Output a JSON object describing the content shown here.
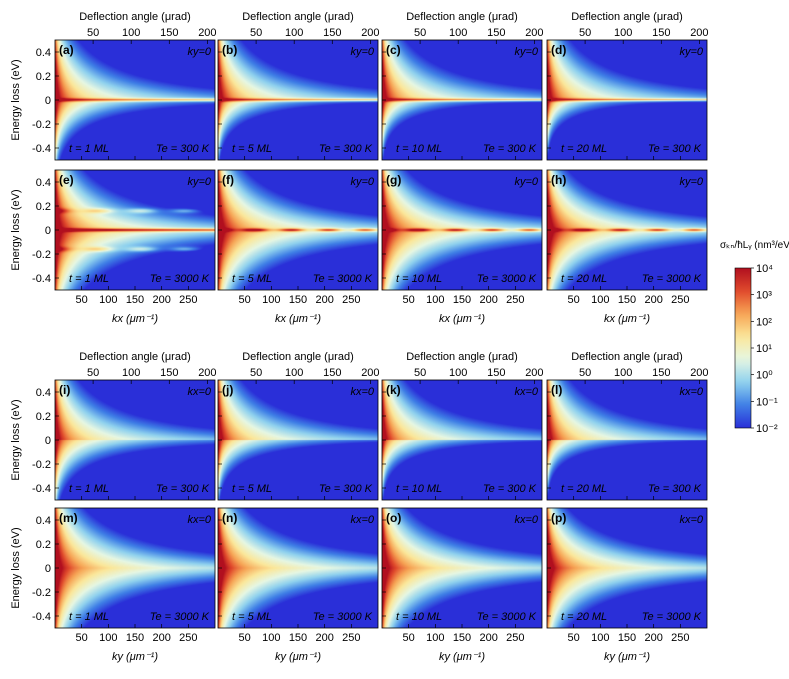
{
  "chart_data": {
    "type": "heatmap",
    "top_axis": {
      "label": "Deflection angle (μrad)",
      "ticks": [
        50,
        100,
        150,
        200
      ]
    },
    "y_axis": {
      "label": "Energy loss (eV)",
      "ylim": [
        -0.5,
        0.5
      ],
      "ticks": [
        0.4,
        0.2,
        0,
        -0.2,
        -0.4
      ],
      "tick_labels": [
        "0.4",
        "0.2",
        "0",
        "-0.2",
        "-0.4"
      ]
    },
    "x_axis_kx": {
      "label": "kx (μm⁻¹)",
      "xlim": [
        0,
        300
      ],
      "ticks": [
        50,
        100,
        150,
        200,
        250
      ]
    },
    "x_axis_ky": {
      "label": "ky (μm⁻¹)",
      "xlim": [
        0,
        300
      ],
      "ticks": [
        50,
        100,
        150,
        200,
        250
      ]
    },
    "colorbar": {
      "label": "σₖₙ/ħLᵧ (nm³/eV)",
      "scale": "log",
      "range": [
        0.01,
        10000
      ],
      "ticks": [
        "10⁴",
        "10³",
        "10²",
        "10¹",
        "10⁰",
        "10⁻¹",
        "10⁻²"
      ]
    },
    "panels": [
      {
        "label": "(a)",
        "corner": "ky=0",
        "thickness": "t = 1 ML",
        "temperature": "Te = 300 K",
        "thick": 1,
        "temp": 300,
        "dir": "kx"
      },
      {
        "label": "(b)",
        "corner": "ky=0",
        "thickness": "t = 5 ML",
        "temperature": "Te = 300 K",
        "thick": 5,
        "temp": 300,
        "dir": "kx"
      },
      {
        "label": "(c)",
        "corner": "ky=0",
        "thickness": "t = 10 ML",
        "temperature": "Te = 300 K",
        "thick": 10,
        "temp": 300,
        "dir": "kx"
      },
      {
        "label": "(d)",
        "corner": "ky=0",
        "thickness": "t = 20 ML",
        "temperature": "Te = 300 K",
        "thick": 20,
        "temp": 300,
        "dir": "kx"
      },
      {
        "label": "(e)",
        "corner": "ky=0",
        "thickness": "t = 1 ML",
        "temperature": "Te = 3000 K",
        "thick": 1,
        "temp": 3000,
        "dir": "kx"
      },
      {
        "label": "(f)",
        "corner": "ky=0",
        "thickness": "t = 5 ML",
        "temperature": "Te = 3000 K",
        "thick": 5,
        "temp": 3000,
        "dir": "kx"
      },
      {
        "label": "(g)",
        "corner": "ky=0",
        "thickness": "t = 10 ML",
        "temperature": "Te = 3000 K",
        "thick": 10,
        "temp": 3000,
        "dir": "kx"
      },
      {
        "label": "(h)",
        "corner": "ky=0",
        "thickness": "t = 20 ML",
        "temperature": "Te = 3000 K",
        "thick": 20,
        "temp": 3000,
        "dir": "kx"
      },
      {
        "label": "(i)",
        "corner": "kx=0",
        "thickness": "t = 1 ML",
        "temperature": "Te = 300 K",
        "thick": 1,
        "temp": 300,
        "dir": "ky"
      },
      {
        "label": "(j)",
        "corner": "kx=0",
        "thickness": "t = 5 ML",
        "temperature": "Te = 300 K",
        "thick": 5,
        "temp": 300,
        "dir": "ky"
      },
      {
        "label": "(k)",
        "corner": "kx=0",
        "thickness": "t = 10 ML",
        "temperature": "Te = 300 K",
        "thick": 10,
        "temp": 300,
        "dir": "ky"
      },
      {
        "label": "(l)",
        "corner": "kx=0",
        "thickness": "t = 20 ML",
        "temperature": "Te = 300 K",
        "thick": 20,
        "temp": 300,
        "dir": "ky"
      },
      {
        "label": "(m)",
        "corner": "kx=0",
        "thickness": "t = 1 ML",
        "temperature": "Te = 3000 K",
        "thick": 1,
        "temp": 3000,
        "dir": "ky"
      },
      {
        "label": "(n)",
        "corner": "kx=0",
        "thickness": "t = 5 ML",
        "temperature": "Te = 3000 K",
        "thick": 5,
        "temp": 3000,
        "dir": "ky"
      },
      {
        "label": "(o)",
        "corner": "kx=0",
        "thickness": "t = 10 ML",
        "temperature": "Te = 3000 K",
        "thick": 10,
        "temp": 3000,
        "dir": "ky"
      },
      {
        "label": "(p)",
        "corner": "kx=0",
        "thickness": "t = 20 ML",
        "temperature": "Te = 3000 K",
        "thick": 20,
        "temp": 3000,
        "dir": "ky"
      }
    ],
    "colormap": [
      "#2a2fd8",
      "#3f7fe6",
      "#8fd1ee",
      "#e6f7e3",
      "#fbe79a",
      "#f6a455",
      "#e04a2c",
      "#b10f1f"
    ]
  }
}
